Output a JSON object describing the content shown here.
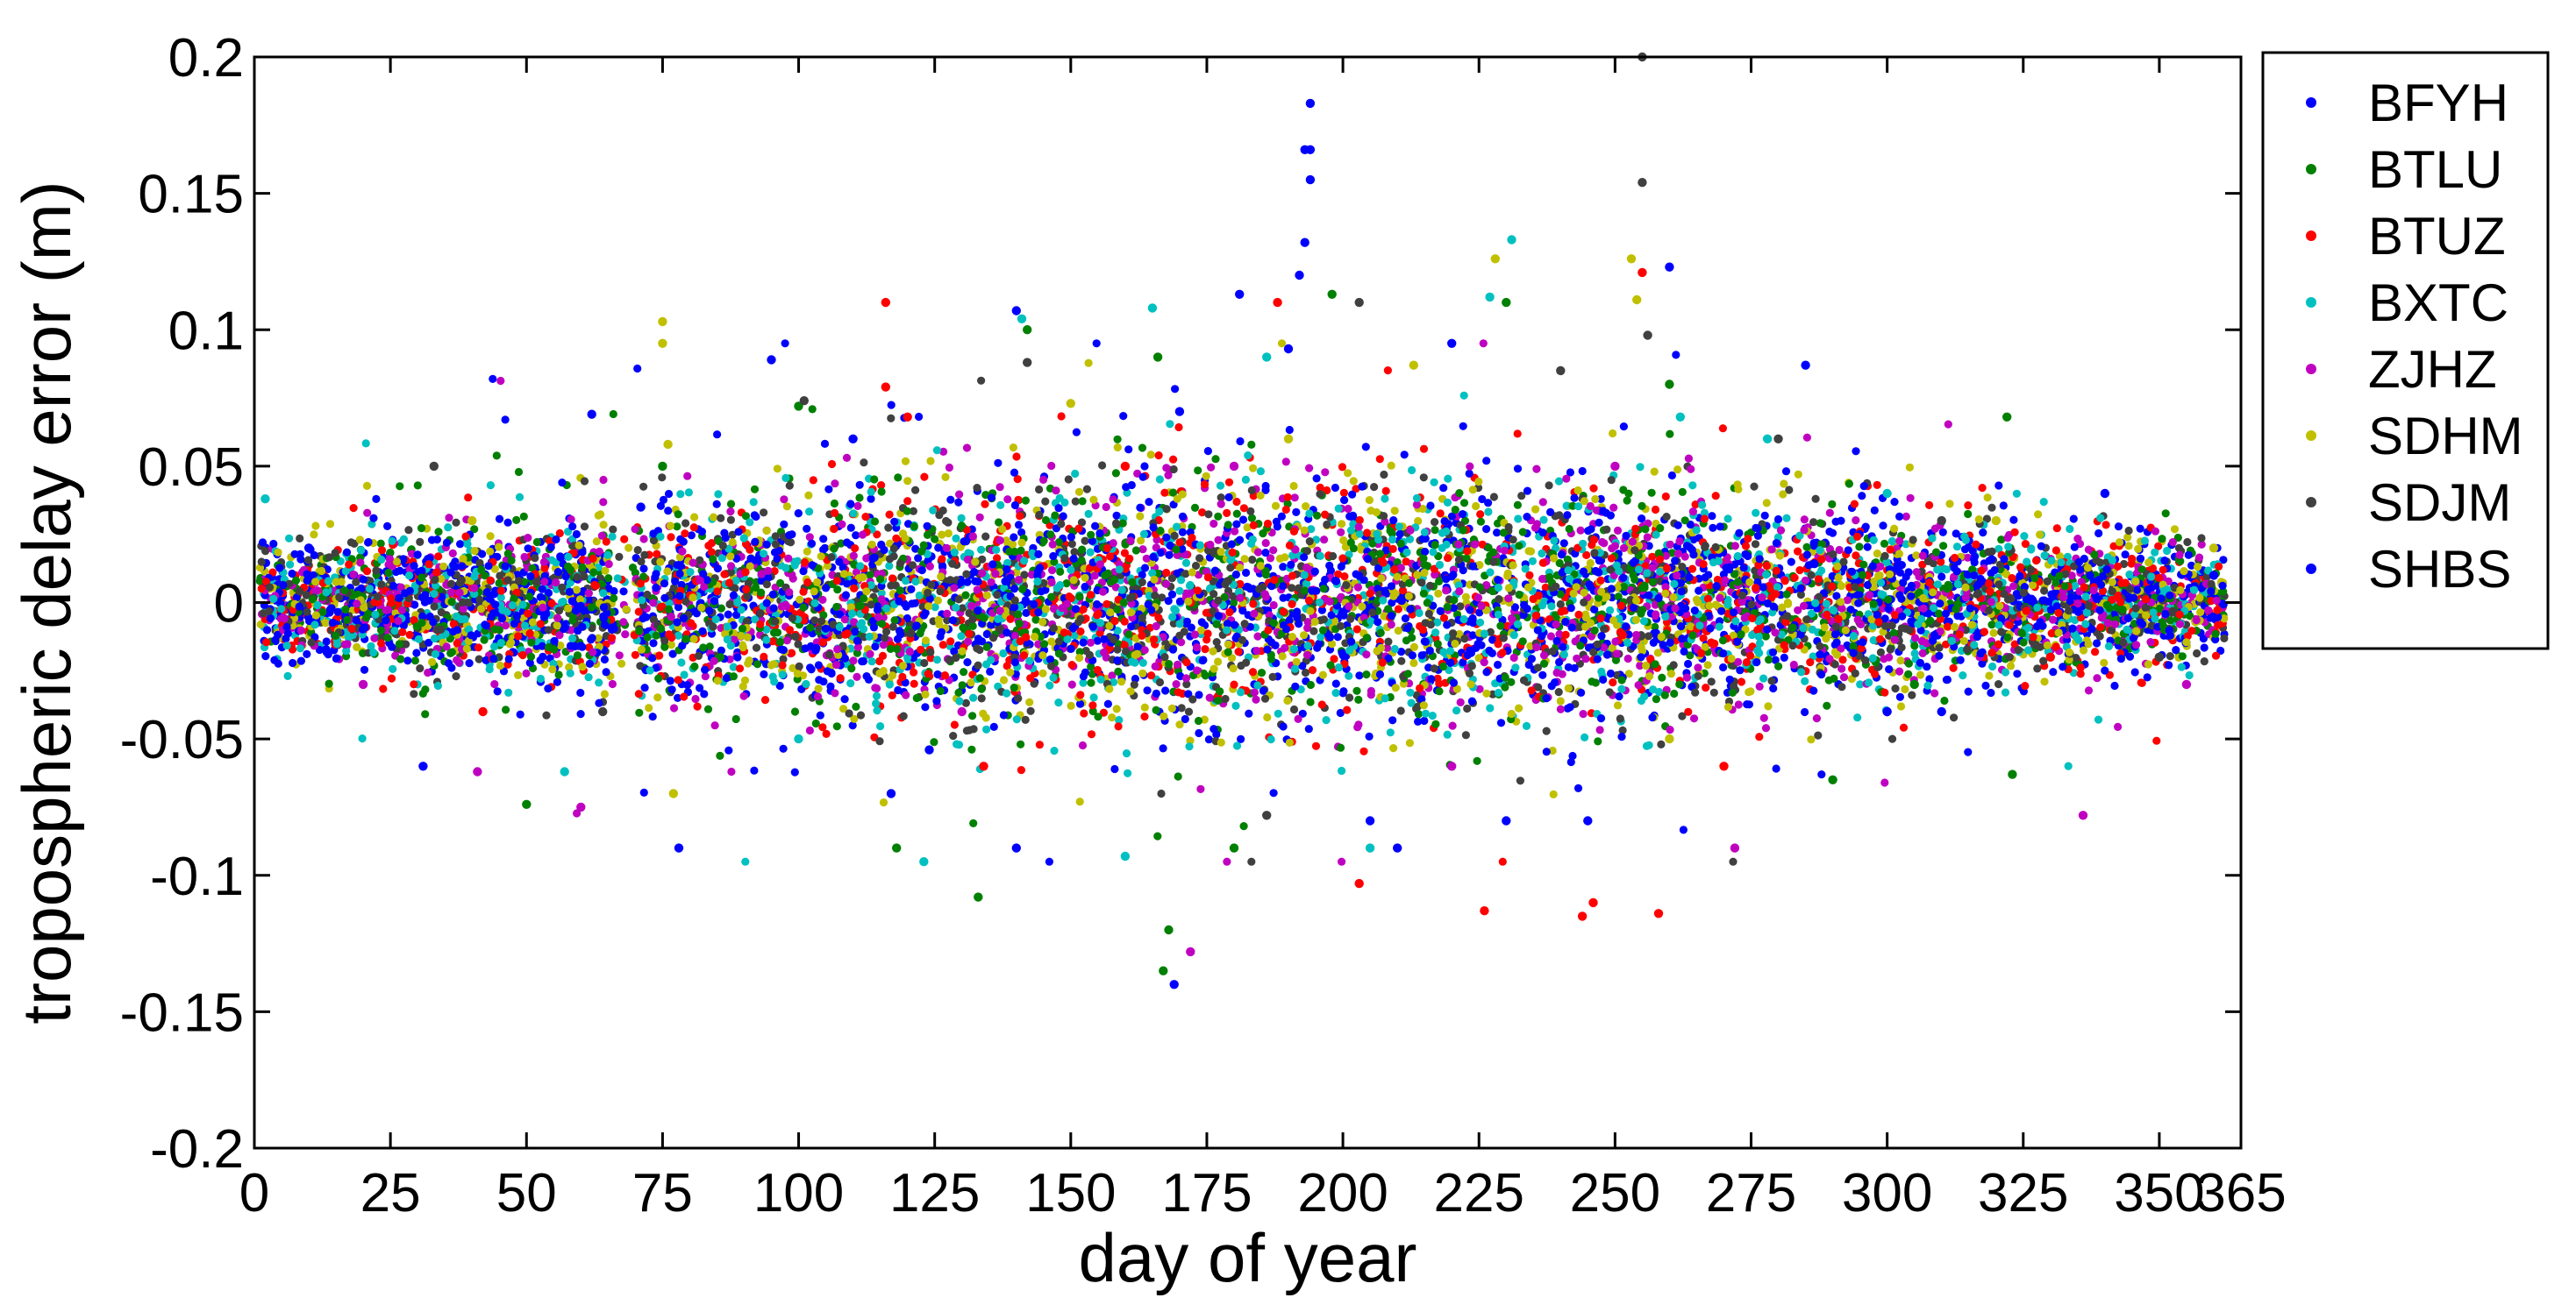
{
  "chart_data": {
    "type": "scatter",
    "title": "",
    "xlabel": "day of year",
    "ylabel": "tropospheric delay error (m)",
    "xlim": [
      0,
      365
    ],
    "ylim": [
      -0.2,
      0.2
    ],
    "x_ticks": [
      0,
      25,
      50,
      75,
      100,
      125,
      150,
      175,
      200,
      225,
      250,
      275,
      300,
      325,
      350,
      365
    ],
    "y_ticks": [
      -0.2,
      -0.15,
      -0.1,
      -0.05,
      0,
      0.05,
      0.1,
      0.15,
      0.2
    ],
    "x_tick_labels": [
      "0",
      "25",
      "50",
      "75",
      "100",
      "125",
      "150",
      "175",
      "200",
      "225",
      "250",
      "275",
      "300",
      "325",
      "350",
      "365"
    ],
    "y_tick_labels": [
      "-0.2",
      "-0.15",
      "-0.1",
      "-0.05",
      "0",
      "0.05",
      "0.1",
      "0.15",
      "0.2"
    ],
    "grid": false,
    "legend_position": "outside-right-top",
    "series": [
      {
        "name": "BFYH",
        "color": "#0000ff",
        "values": [
          [
            194,
            0.183
          ],
          [
            194,
            0.166
          ],
          [
            194,
            0.155
          ],
          [
            193,
            0.132
          ],
          [
            181,
            0.113
          ],
          [
            190,
            0.093
          ],
          [
            169,
            -0.14
          ],
          [
            78,
            -0.09
          ],
          [
            95,
            0.089
          ],
          [
            260,
            0.123
          ],
          [
            285,
            0.087
          ],
          [
            62,
            0.069
          ],
          [
            245,
            -0.08
          ],
          [
            220,
            0.095
          ],
          [
            31,
            -0.06
          ],
          [
            140,
            -0.09
          ],
          [
            117,
            -0.07
          ],
          [
            205,
            -0.08
          ],
          [
            310,
            -0.04
          ],
          [
            340,
            0.04
          ]
        ]
      },
      {
        "name": "BTLU",
        "color": "#008000",
        "values": [
          [
            167,
            -0.135
          ],
          [
            168,
            -0.12
          ],
          [
            133,
            -0.108
          ],
          [
            142,
            0.1
          ],
          [
            198,
            0.113
          ],
          [
            323,
            -0.063
          ],
          [
            322,
            0.068
          ],
          [
            166,
            0.09
          ],
          [
            100,
            0.072
          ],
          [
            50,
            -0.074
          ],
          [
            290,
            -0.065
          ],
          [
            230,
            0.11
          ],
          [
            118,
            -0.09
          ],
          [
            260,
            0.08
          ],
          [
            180,
            -0.09
          ],
          [
            75,
            0.05
          ],
          [
            305,
            -0.03
          ],
          [
            350,
            -0.02
          ]
        ]
      },
      {
        "name": "BTUZ",
        "color": "#ff0000",
        "values": [
          [
            116,
            0.11
          ],
          [
            116,
            0.079
          ],
          [
            226,
            -0.113
          ],
          [
            244,
            -0.115
          ],
          [
            246,
            -0.11
          ],
          [
            258,
            -0.114
          ],
          [
            188,
            0.11
          ],
          [
            203,
            -0.103
          ],
          [
            255,
            0.121
          ],
          [
            134,
            -0.06
          ],
          [
            120,
            0.068
          ],
          [
            160,
            0.05
          ],
          [
            270,
            -0.06
          ],
          [
            42,
            -0.04
          ],
          [
            330,
            -0.02
          ]
        ]
      },
      {
        "name": "BXTC",
        "color": "#00c0c0",
        "values": [
          [
            231,
            0.133
          ],
          [
            165,
            0.108
          ],
          [
            141,
            0.104
          ],
          [
            186,
            0.09
          ],
          [
            160,
            -0.093
          ],
          [
            123,
            -0.095
          ],
          [
            227,
            0.112
          ],
          [
            262,
            0.068
          ],
          [
            2,
            0.038
          ],
          [
            278,
            0.06
          ],
          [
            57,
            -0.062
          ],
          [
            100,
            -0.05
          ],
          [
            205,
            -0.09
          ],
          [
            300,
            0.04
          ]
        ]
      },
      {
        "name": "ZJHZ",
        "color": "#c000c0",
        "values": [
          [
            172,
            -0.128
          ],
          [
            336,
            -0.078
          ],
          [
            272,
            -0.09
          ],
          [
            41,
            -0.062
          ],
          [
            60,
            -0.075
          ],
          [
            220,
            -0.06
          ],
          [
            130,
            -0.04
          ],
          [
            20,
            -0.03
          ],
          [
            250,
            0.05
          ],
          [
            300,
            -0.04
          ],
          [
            355,
            -0.03
          ],
          [
            180,
            0.05
          ]
        ]
      },
      {
        "name": "SDHM",
        "color": "#c0c000",
        "values": [
          [
            75,
            0.103
          ],
          [
            75,
            0.095
          ],
          [
            253,
            0.126
          ],
          [
            254,
            0.111
          ],
          [
            228,
            0.126
          ],
          [
            213,
            0.087
          ],
          [
            77,
            -0.07
          ],
          [
            76,
            0.058
          ],
          [
            150,
            0.073
          ],
          [
            190,
            0.06
          ],
          [
            260,
            -0.05
          ],
          [
            320,
            0.03
          ],
          [
            360,
            0.02
          ],
          [
            40,
            0.03
          ]
        ]
      },
      {
        "name": "SDJM",
        "color": "#404040",
        "values": [
          [
            255,
            0.2
          ],
          [
            255,
            0.154
          ],
          [
            203,
            0.11
          ],
          [
            256,
            0.098
          ],
          [
            142,
            0.088
          ],
          [
            101,
            0.074
          ],
          [
            186,
            -0.078
          ],
          [
            240,
            0.085
          ],
          [
            33,
            0.05
          ],
          [
            64,
            -0.04
          ],
          [
            280,
            0.06
          ],
          [
            310,
            0.03
          ],
          [
            350,
            -0.02
          ]
        ]
      },
      {
        "name": "SHBS",
        "color": "#0000ff",
        "values": [
          [
            193,
            0.166
          ],
          [
            192,
            0.12
          ],
          [
            140,
            0.107
          ],
          [
            124,
            -0.054
          ],
          [
            71,
            0.035
          ],
          [
            300,
            -0.04
          ],
          [
            210,
            -0.09
          ],
          [
            170,
            0.07
          ],
          [
            230,
            -0.08
          ],
          [
            110,
            0.06
          ],
          [
            10,
            0.02
          ],
          [
            360,
            0.01
          ]
        ]
      }
    ]
  }
}
